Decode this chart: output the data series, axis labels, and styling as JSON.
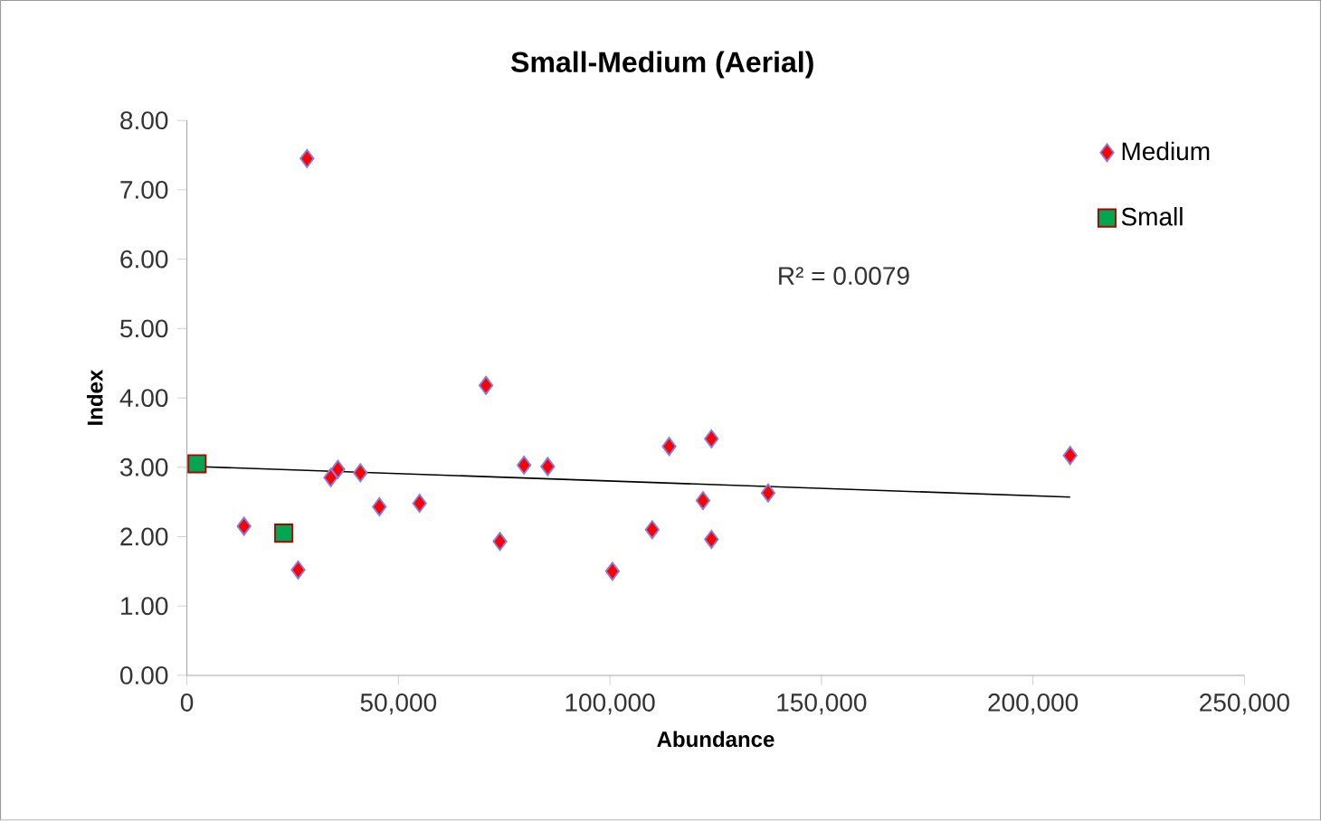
{
  "chart_data": {
    "type": "scatter",
    "title": "Small-Medium (Aerial)",
    "xlabel": "Abundance",
    "ylabel": "Index",
    "xlim": [
      0,
      250000
    ],
    "xticks": [
      {
        "value": 0,
        "label": "0"
      },
      {
        "value": 50000,
        "label": "50,000"
      },
      {
        "value": 100000,
        "label": "100,000"
      },
      {
        "value": 150000,
        "label": "150,000"
      },
      {
        "value": 200000,
        "label": "200,000"
      },
      {
        "value": 250000,
        "label": "250,000"
      }
    ],
    "ylim": [
      0,
      8
    ],
    "yticks": [
      {
        "value": 0,
        "label": "0.00"
      },
      {
        "value": 1,
        "label": "1.00"
      },
      {
        "value": 2,
        "label": "2.00"
      },
      {
        "value": 3,
        "label": "3.00"
      },
      {
        "value": 4,
        "label": "4.00"
      },
      {
        "value": 5,
        "label": "5.00"
      },
      {
        "value": 6,
        "label": "6.00"
      },
      {
        "value": 7,
        "label": "7.00"
      },
      {
        "value": 8,
        "label": "8.00"
      }
    ],
    "grid": false,
    "legend": "top right",
    "annotations": [
      "R² = 0.0079"
    ],
    "series": [
      {
        "name": "Medium",
        "color": "#ff0000",
        "marker": "diamond",
        "x": [
          13500,
          26300,
          28400,
          34000,
          35700,
          41000,
          45500,
          55000,
          70700,
          74000,
          79700,
          85300,
          100600,
          110000,
          114000,
          122000,
          124000,
          124000,
          137400,
          208800
        ],
        "values": [
          2.15,
          1.52,
          7.45,
          2.85,
          2.97,
          2.92,
          2.43,
          2.48,
          4.18,
          1.93,
          3.03,
          3.01,
          1.5,
          2.1,
          3.3,
          2.52,
          3.41,
          1.96,
          2.63,
          3.17
        ]
      },
      {
        "name": "Small",
        "color": "#00a650",
        "marker": "square",
        "x": [
          2400,
          22900
        ],
        "values": [
          3.05,
          2.05
        ]
      },
      {
        "type": "line",
        "color": "#000000",
        "marker": "none",
        "x": [
          2400,
          208800
        ],
        "values": [
          3.01,
          2.57
        ]
      }
    ]
  }
}
